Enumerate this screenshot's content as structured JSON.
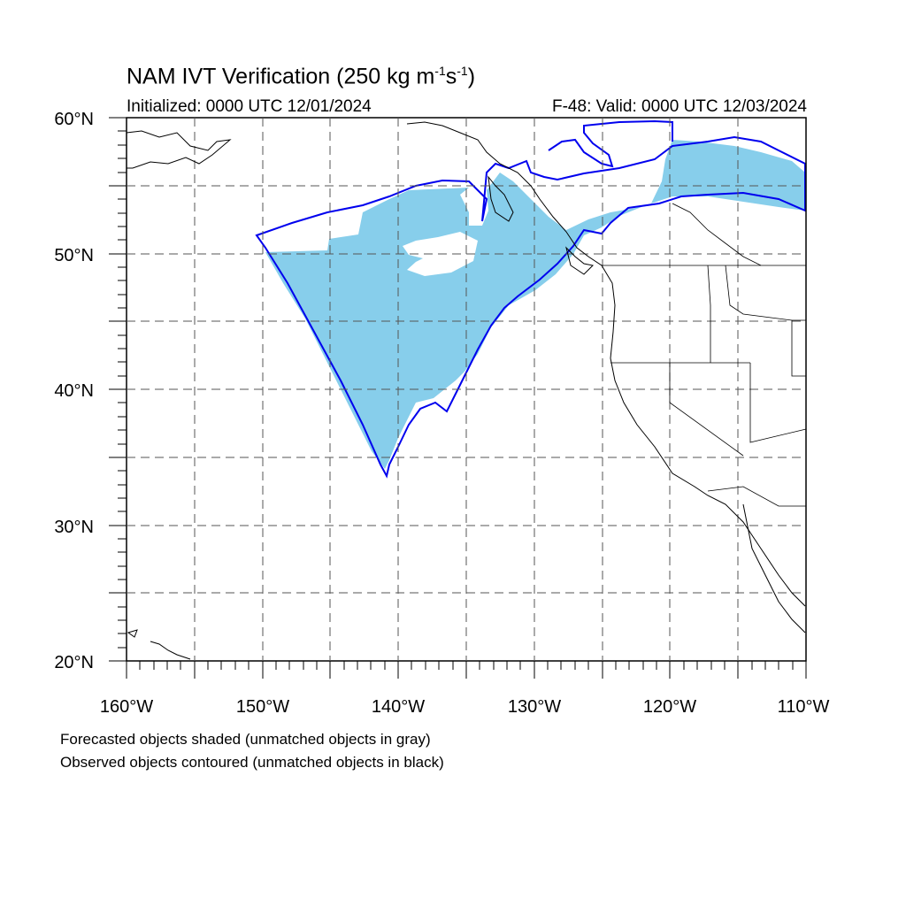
{
  "header": {
    "title_main": "NAM IVT Verification (250 kg m",
    "title_sup1": "-1",
    "title_mid": "s",
    "title_sup2": "-1",
    "title_end": ")",
    "initialized": "Initialized: 0000 UTC 12/01/2024",
    "valid": "F-48: Valid: 0000 UTC 12/03/2024"
  },
  "map": {
    "lat_range": [
      20,
      60
    ],
    "lon_range": [
      -160,
      -110
    ],
    "lat_labels": [
      "60°N",
      "50°N",
      "40°N",
      "30°N",
      "20°N"
    ],
    "lon_labels": [
      "160°W",
      "150°W",
      "140°W",
      "130°W",
      "120°W",
      "110°W"
    ],
    "gridlines": "dashed every 5°",
    "forecast_color": "#87ceeb",
    "observed_color": "#0000ee"
  },
  "legend": {
    "line1": "Forecasted objects shaded (unmatched objects in gray)",
    "line2": "Observed objects contoured (unmatched objects in black)"
  }
}
